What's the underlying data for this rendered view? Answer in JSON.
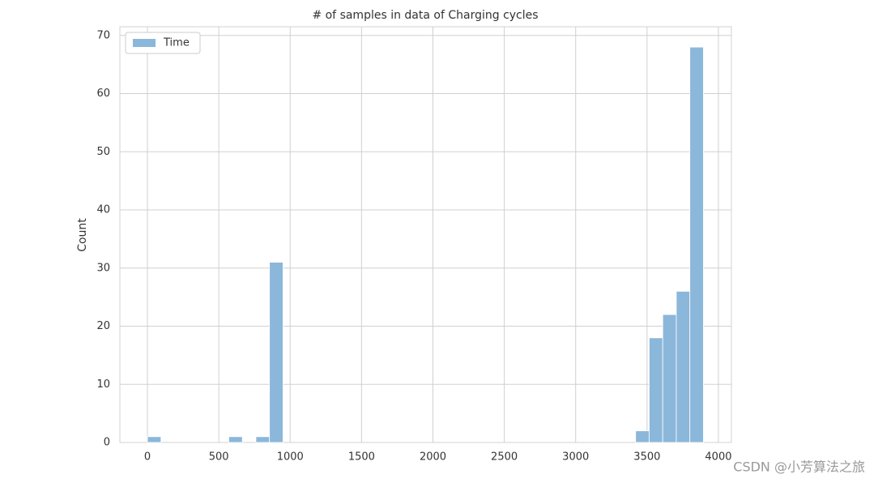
{
  "chart_data": {
    "type": "histogram",
    "title": "# of samples in data of Charging cycles",
    "ylabel": "Count",
    "bins": [
      0,
      95,
      190,
      285,
      380,
      475,
      570,
      665,
      760,
      855,
      950,
      1045,
      1140,
      1235,
      1330,
      1425,
      1520,
      1615,
      1710,
      1805,
      1900,
      1995,
      2090,
      2185,
      2280,
      2375,
      2470,
      2565,
      2660,
      2755,
      2850,
      2945,
      3040,
      3135,
      3230,
      3325,
      3420,
      3515,
      3610,
      3705,
      3800,
      3895
    ],
    "series": [
      {
        "name": "Time",
        "color": "#8bb7da",
        "values": [
          1,
          0,
          0,
          0,
          0,
          0,
          1,
          0,
          1,
          31,
          0,
          0,
          0,
          0,
          0,
          0,
          0,
          0,
          0,
          0,
          0,
          0,
          0,
          0,
          0,
          0,
          0,
          0,
          0,
          0,
          0,
          0,
          0,
          0,
          0,
          0,
          2,
          18,
          22,
          26,
          68
        ]
      }
    ],
    "xlim": [
      -193,
      4091
    ],
    "ylim": [
      0,
      71.5
    ],
    "xticks": [
      0,
      500,
      1000,
      1500,
      2000,
      2500,
      3000,
      3500,
      4000
    ],
    "yticks": [
      0,
      10,
      20,
      30,
      40,
      50,
      60,
      70
    ],
    "grid": true,
    "legend": "upper left"
  },
  "watermark": "CSDN @小芳算法之旅"
}
